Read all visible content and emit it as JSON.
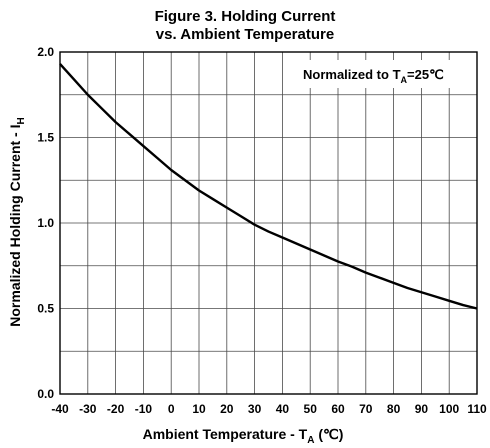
{
  "title_line1": "Figure 3. Holding Current",
  "title_line2": "vs. Ambient Temperature",
  "annotation": {
    "main": "Normalized to T",
    "sub": "A",
    "tail": "=25℃"
  },
  "xlabel": {
    "main": "Ambient Temperature - T",
    "sub": "A",
    "tail": " (℃)"
  },
  "ylabel": {
    "main": "Normalized Holding Current - I",
    "sub": "H"
  },
  "chart_data": {
    "type": "line",
    "title": "Figure 3. Holding Current vs. Ambient Temperature",
    "xlabel": "Ambient Temperature - TA (℃)",
    "ylabel": "Normalized Holding Current - IH",
    "xlim": [
      -40,
      110
    ],
    "ylim": [
      0.0,
      2.0
    ],
    "x_ticks": [
      -40,
      -30,
      -20,
      -10,
      0,
      10,
      20,
      30,
      40,
      50,
      60,
      70,
      80,
      90,
      100,
      110
    ],
    "y_ticks": [
      "0.0",
      "0.5",
      "1.0",
      "1.5",
      "2.0"
    ],
    "grid": true,
    "annotation": "Normalized to TA=25℃",
    "series": [
      {
        "x": [
          -40,
          -35,
          -30,
          -25,
          -20,
          -15,
          -10,
          -5,
          0,
          5,
          10,
          15,
          20,
          25,
          30,
          35,
          40,
          45,
          50,
          55,
          60,
          65,
          70,
          75,
          80,
          85,
          90,
          95,
          100,
          105,
          110
        ],
        "y": [
          1.93,
          1.84,
          1.75,
          1.67,
          1.59,
          1.52,
          1.45,
          1.38,
          1.31,
          1.25,
          1.19,
          1.14,
          1.09,
          1.04,
          0.99,
          0.95,
          0.915,
          0.88,
          0.845,
          0.81,
          0.775,
          0.745,
          0.71,
          0.68,
          0.65,
          0.62,
          0.595,
          0.57,
          0.545,
          0.52,
          0.5
        ]
      }
    ]
  }
}
